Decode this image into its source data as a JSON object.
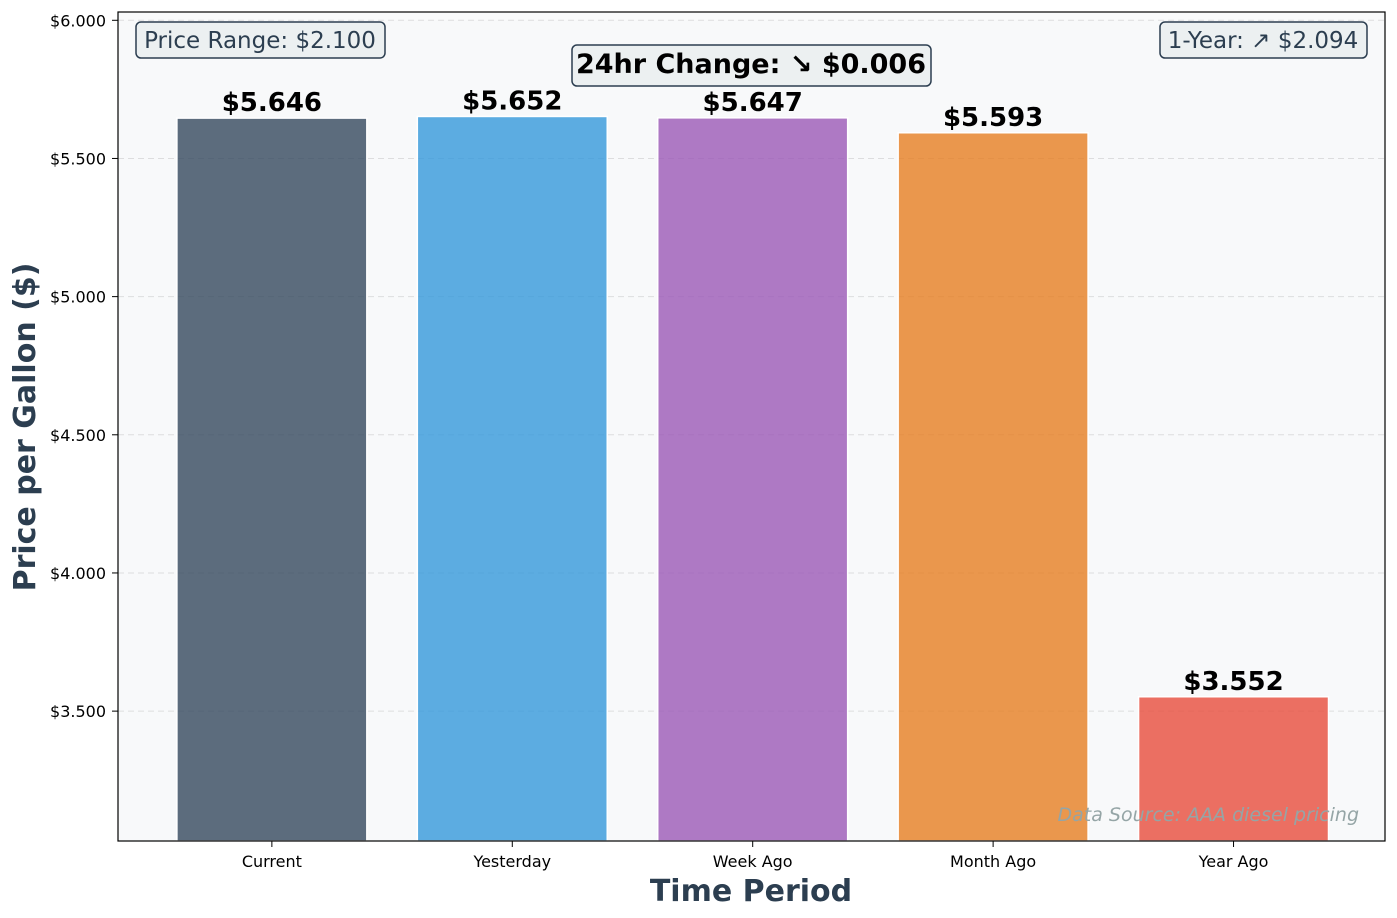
{
  "chart_data": {
    "type": "bar",
    "xlabel": "Time Period",
    "ylabel": "Price per Gallon ($)",
    "categories": [
      "Current",
      "Yesterday",
      "Week Ago",
      "Month Ago",
      "Year Ago"
    ],
    "values": [
      5.646,
      5.652,
      5.647,
      5.593,
      3.552
    ],
    "value_labels": [
      "$5.646",
      "$5.652",
      "$5.647",
      "$5.593",
      "$3.552"
    ],
    "colors": [
      "#34495e",
      "#3498db",
      "#9b59b6",
      "#e67e22",
      "#e74c3c"
    ],
    "ylim": [
      3.03,
      6.03
    ],
    "yticks": [
      3.5,
      4.0,
      4.5,
      5.0,
      5.5,
      6.0
    ],
    "ytick_labels": [
      "$3.500",
      "$4.000",
      "$4.500",
      "$5.000",
      "$5.500",
      "$6.000"
    ],
    "grid": true,
    "annotations": {
      "price_range": "Price Range: $2.100",
      "change_24hr": "24hr Change: ↘ $0.006",
      "change_1yr": "1-Year: ↗ $2.094",
      "source": "Data Source: AAA diesel pricing"
    }
  }
}
